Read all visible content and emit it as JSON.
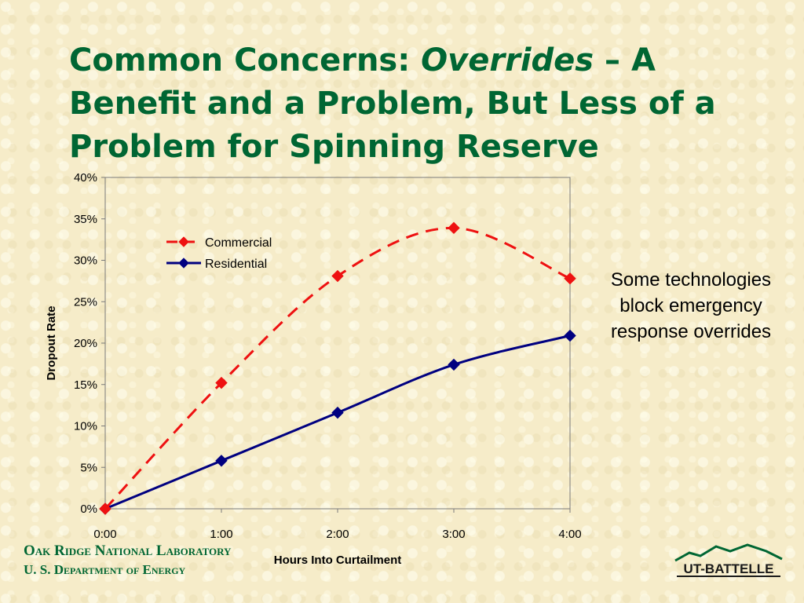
{
  "slide": {
    "title_part1": "Common Concerns: ",
    "title_italic": "Overrides",
    "title_part2": " –  A Benefit and a Problem, But Less of a Problem for Spinning Reserve",
    "side_note": "Some technologies block emergency response overrides",
    "footer_lab": "Oak Ridge National Laboratory",
    "footer_doe": "U. S. Department of Energy",
    "logo_text": "UT-BATTELLE",
    "colors": {
      "title_green": "#006633",
      "commercial": "#ee1111",
      "residential": "#000080"
    }
  },
  "chart_data": {
    "type": "line",
    "title": "",
    "xlabel": "Hours Into Curtailment",
    "ylabel": "Dropout Rate",
    "categories": [
      "0:00",
      "1:00",
      "2:00",
      "3:00",
      "4:00"
    ],
    "ylim": [
      0,
      0.4
    ],
    "yticks": [
      0,
      0.05,
      0.1,
      0.15,
      0.2,
      0.25,
      0.3,
      0.35,
      0.4
    ],
    "ytick_labels": [
      "0%",
      "5%",
      "10%",
      "15%",
      "20%",
      "25%",
      "30%",
      "35%",
      "40%"
    ],
    "grid": false,
    "legend_position": "top-left",
    "series": [
      {
        "name": "Commercial",
        "values": [
          0,
          0.152,
          0.281,
          0.339,
          0.278
        ],
        "style": "dashed",
        "color": "#ee1111"
      },
      {
        "name": "Residential",
        "values": [
          0,
          0.058,
          0.116,
          0.174,
          0.209
        ],
        "style": "solid",
        "color": "#000080"
      }
    ]
  }
}
